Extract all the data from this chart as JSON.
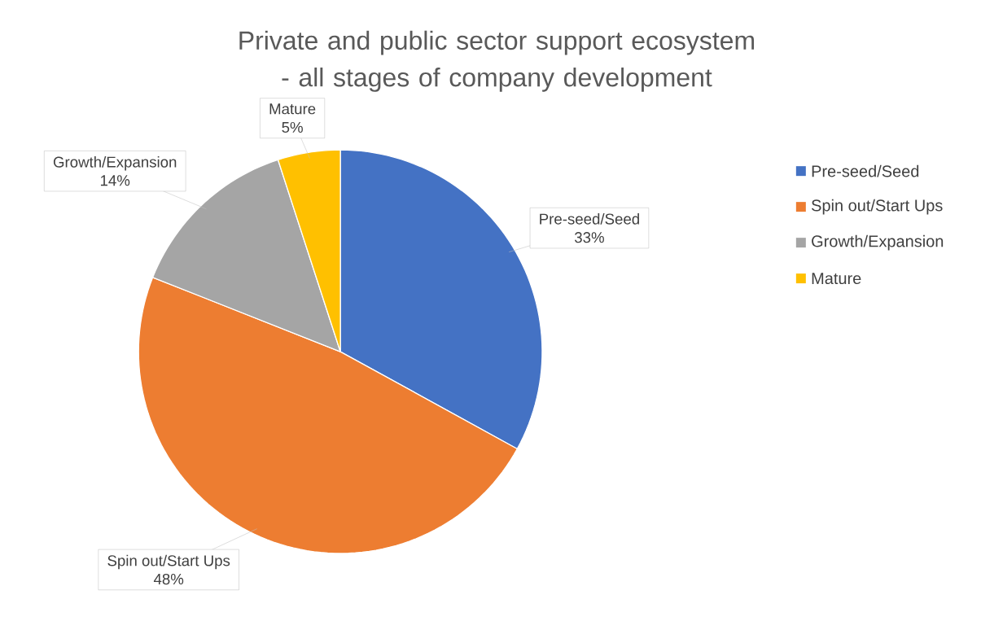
{
  "chart_data": {
    "type": "pie",
    "title": "Private and public sector support ecosystem - all stages of company development",
    "categories": [
      "Pre-seed/Seed",
      "Spin out/Start Ups",
      "Growth/Expansion",
      "Mature"
    ],
    "values": [
      33,
      48,
      14,
      5
    ],
    "colors": [
      "#4472c4",
      "#ed7d31",
      "#a5a5a5",
      "#ffc000"
    ],
    "value_labels": [
      "33%",
      "48%",
      "14%",
      "5%"
    ],
    "legend": "right"
  }
}
